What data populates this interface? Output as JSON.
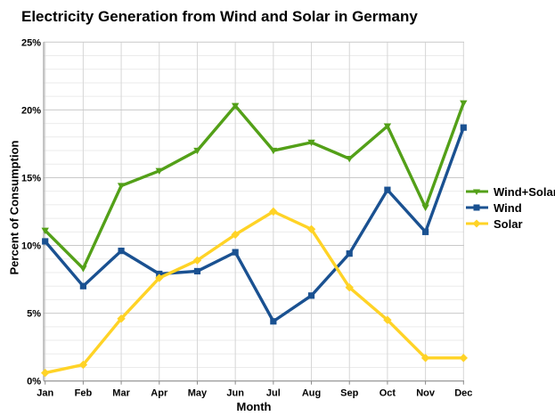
{
  "chart_data": {
    "type": "line",
    "title": "Electricity Generation from Wind and Solar in Germany",
    "xlabel": "Month",
    "ylabel": "Percent of Consumption",
    "categories": [
      "Jan",
      "Feb",
      "Mar",
      "Apr",
      "May",
      "Jun",
      "Jul",
      "Aug",
      "Sep",
      "Oct",
      "Nov",
      "Dec"
    ],
    "ylim": [
      0,
      25
    ],
    "y_major_ticks": [
      0,
      5,
      10,
      15,
      20,
      25
    ],
    "y_tick_labels": [
      "0%",
      "5%",
      "10%",
      "15%",
      "20%",
      "25%"
    ],
    "y_minor_step": 1,
    "grid": true,
    "legend_position": "right",
    "series": [
      {
        "name": "Wind+Solar",
        "color": "#53A018",
        "marker": "triangle-down",
        "values": [
          11.1,
          8.3,
          14.4,
          15.5,
          17.0,
          20.3,
          17.0,
          17.6,
          16.4,
          18.8,
          12.8,
          20.5
        ]
      },
      {
        "name": "Wind",
        "color": "#1A5191",
        "marker": "square",
        "values": [
          10.3,
          7.0,
          9.6,
          7.9,
          8.1,
          9.5,
          4.4,
          6.3,
          9.4,
          14.1,
          11.0,
          18.7
        ]
      },
      {
        "name": "Solar",
        "color": "#FFD326",
        "marker": "diamond",
        "values": [
          0.6,
          1.2,
          4.6,
          7.6,
          8.9,
          10.8,
          12.5,
          11.2,
          6.9,
          4.5,
          1.7,
          1.7
        ]
      }
    ]
  },
  "style_colors": {
    "minor_grid": "#EBEBEB",
    "major_grid": "#C9C9C9",
    "vertical_grid": "#D6D6D6",
    "axis_line": "#8A8A8A",
    "text": "#000000"
  }
}
